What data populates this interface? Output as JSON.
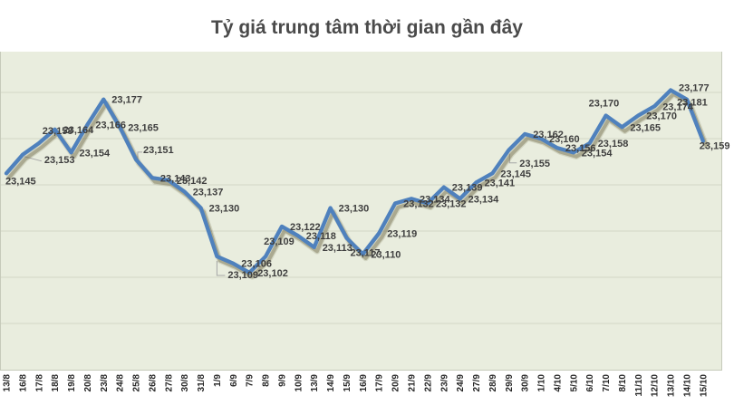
{
  "title": "Tỷ giá trung tâm thời gian gần đây",
  "chart_data": {
    "type": "line",
    "title": "Tỷ giá trung tâm thời gian gần đây",
    "categories": [
      "13/8",
      "16/8",
      "17/8",
      "18/8",
      "19/8",
      "20/8",
      "23/8",
      "24/8",
      "25/8",
      "26/8",
      "27/8",
      "30/8",
      "31/8",
      "1/9",
      "6/9",
      "7/9",
      "8/9",
      "9/9",
      "10/9",
      "13/9",
      "14/9",
      "15/9",
      "16/9",
      "17/9",
      "20/9",
      "21/9",
      "22/9",
      "23/9",
      "24/9",
      "27/9",
      "28/9",
      "29/9",
      "30/9",
      "1/10",
      "4/10",
      "5/10",
      "6/10",
      "7/10",
      "8/10",
      "11/10",
      "12/10",
      "13/10",
      "14/10",
      "15/10"
    ],
    "series": [
      {
        "name": "Tỷ giá trung tâm",
        "values": [
          23145,
          23153,
          23158,
          23164,
          23154,
          23166,
          23177,
          23165,
          23151,
          23143,
          23142,
          23137,
          23130,
          23109,
          23106,
          23102,
          23109,
          23122,
          23118,
          23113,
          23130,
          23117,
          23110,
          23119,
          23132,
          23134,
          23132,
          23139,
          23134,
          23141,
          23145,
          23155,
          23162,
          23160,
          23156,
          23154,
          23158,
          23170,
          23165,
          23170,
          23174,
          23181,
          23177,
          23159
        ]
      }
    ],
    "ylim": [
      23060,
      23200
    ],
    "gridline_values": [
      23180,
      23160,
      23140,
      23120,
      23100,
      23080
    ],
    "grid": true,
    "legend": "none",
    "data_labels_on": true,
    "xlabel": "",
    "ylabel": "",
    "colors": {
      "line": "#4F81BD",
      "shadow": "rgba(104,98,62,0.38)",
      "plot_bg": "#E9EDDE",
      "gridline": "#D2D6C6",
      "plot_border": "#C6CABA",
      "label_text": "#3F3F3F",
      "axis_text": "#262626",
      "title_text": "#4A4A4A",
      "leader": "#A6A6A6",
      "page_bg": "#FFFFFF"
    }
  }
}
